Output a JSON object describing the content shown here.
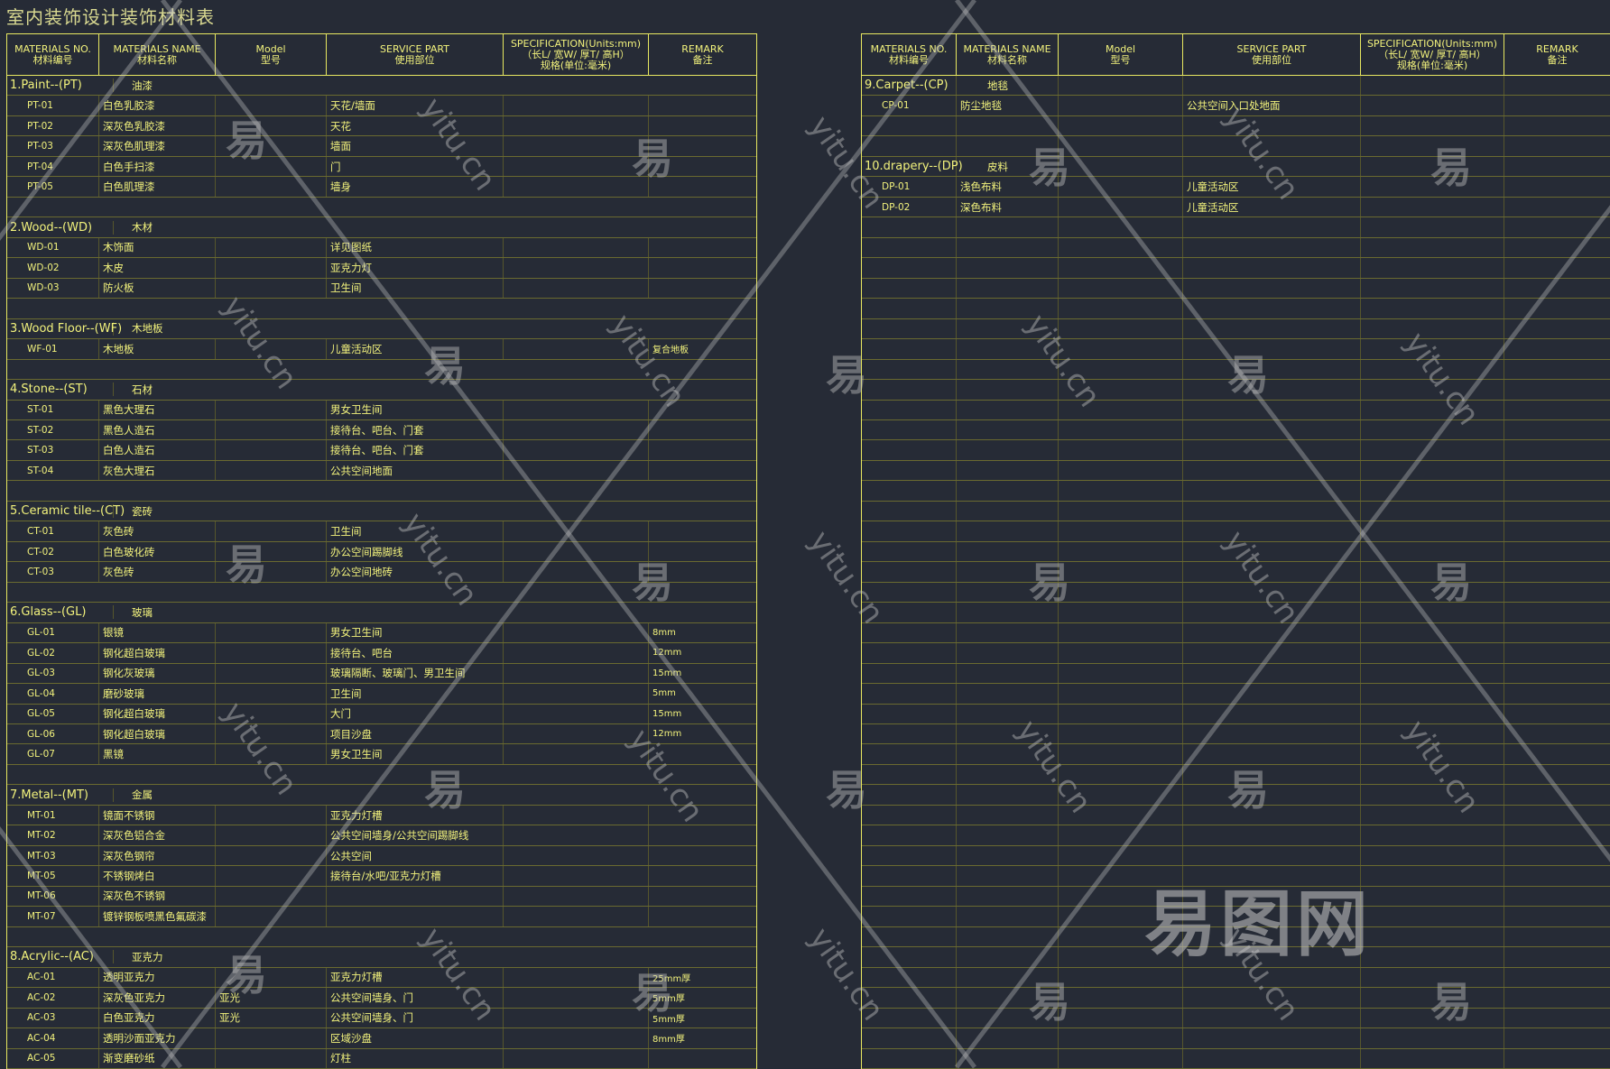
{
  "title": "室内装饰设计装饰材料表",
  "header": [
    {
      "en": "MATERIALS NO.",
      "cn": "材料编号"
    },
    {
      "en": "MATERIALS NAME",
      "cn": "材料名称"
    },
    {
      "en": "Model",
      "cn": "型号"
    },
    {
      "en": "SERVICE PART",
      "cn": "使用部位"
    },
    {
      "en": "SPECIFICATION(Units:mm)",
      "sub": "（长L/ 宽W/ 厚T/ 高H）",
      "cn": "规格(单位:毫米)"
    },
    {
      "en": "REMARK",
      "cn": "备注"
    }
  ],
  "left_sections": [
    {
      "en": "1.Paint--(PT)",
      "cn": "油漆",
      "items": [
        [
          "PT-01",
          "白色乳胶漆",
          "",
          "天花/墙面",
          "",
          ""
        ],
        [
          "PT-02",
          "深灰色乳胶漆",
          "",
          "天花",
          "",
          ""
        ],
        [
          "PT-03",
          "深灰色肌理漆",
          "",
          "墙面",
          "",
          ""
        ],
        [
          "PT-04",
          "白色手扫漆",
          "",
          "门",
          "",
          ""
        ],
        [
          "PT-05",
          "白色肌理漆",
          "",
          "墙身",
          "",
          ""
        ]
      ]
    },
    {
      "en": "2.Wood--(WD)",
      "cn": "木材",
      "items": [
        [
          "WD-01",
          "木饰面",
          "",
          "详见图纸",
          "",
          ""
        ],
        [
          "WD-02",
          "木皮",
          "",
          "亚克力灯",
          "",
          ""
        ],
        [
          "WD-03",
          "防火板",
          "",
          "卫生间",
          "",
          ""
        ]
      ]
    },
    {
      "en": "3.Wood Floor--(WF)",
      "cn": "木地板",
      "items": [
        [
          "WF-01",
          "木地板",
          "",
          "儿童活动区",
          "",
          "复合地板"
        ]
      ]
    },
    {
      "en": "4.Stone--(ST)",
      "cn": "石材",
      "items": [
        [
          "ST-01",
          "黑色大理石",
          "",
          "男女卫生间",
          "",
          ""
        ],
        [
          "ST-02",
          "黑色人造石",
          "",
          "接待台、吧台、门套",
          "",
          ""
        ],
        [
          "ST-03",
          "白色人造石",
          "",
          "接待台、吧台、门套",
          "",
          ""
        ],
        [
          "ST-04",
          "灰色大理石",
          "",
          "公共空间地面",
          "",
          ""
        ]
      ]
    },
    {
      "en": "5.Ceramic tile--(CT)",
      "cn": "瓷砖",
      "items": [
        [
          "CT-01",
          "灰色砖",
          "",
          "卫生间",
          "",
          ""
        ],
        [
          "CT-02",
          "白色玻化砖",
          "",
          "办公空间踢脚线",
          "",
          ""
        ],
        [
          "CT-03",
          "灰色砖",
          "",
          "办公空间地砖",
          "",
          ""
        ]
      ]
    },
    {
      "en": "6.Glass--(GL)",
      "cn": "玻璃",
      "items": [
        [
          "GL-01",
          "银镜",
          "",
          "男女卫生间",
          "",
          "8mm"
        ],
        [
          "GL-02",
          "钢化超白玻璃",
          "",
          "接待台、吧台",
          "",
          "12mm"
        ],
        [
          "GL-03",
          "钢化灰玻璃",
          "",
          "玻璃隔断、玻璃门、男卫生间",
          "",
          "15mm"
        ],
        [
          "GL-04",
          "磨砂玻璃",
          "",
          "卫生间",
          "",
          "5mm"
        ],
        [
          "GL-05",
          "钢化超白玻璃",
          "",
          "大门",
          "",
          "15mm"
        ],
        [
          "GL-06",
          "钢化超白玻璃",
          "",
          "项目沙盘",
          "",
          "12mm"
        ],
        [
          "GL-07",
          "黑镜",
          "",
          "男女卫生间",
          "",
          ""
        ]
      ]
    },
    {
      "en": "7.Metal--(MT)",
      "cn": "金属",
      "items": [
        [
          "MT-01",
          "镜面不锈钢",
          "",
          "亚克力灯槽",
          "",
          ""
        ],
        [
          "MT-02",
          "深灰色铝合金",
          "",
          "公共空间墙身/公共空间踢脚线",
          "",
          ""
        ],
        [
          "MT-03",
          "深灰色钢帘",
          "",
          "公共空间",
          "",
          ""
        ],
        [
          "MT-05",
          "不锈钢烤白",
          "",
          "接待台/水吧/亚克力灯槽",
          "",
          ""
        ],
        [
          "MT-06",
          "深灰色不锈钢",
          "",
          "",
          "",
          ""
        ],
        [
          "MT-07",
          "镀锌钢板喷黑色氟碳漆",
          "",
          "",
          "",
          ""
        ]
      ]
    },
    {
      "en": "8.Acrylic--(AC)",
      "cn": "亚克力",
      "items": [
        [
          "AC-01",
          "透明亚克力",
          "",
          "亚克力灯槽",
          "",
          "25mm厚"
        ],
        [
          "AC-02",
          "深灰色亚克力",
          "亚光",
          "公共空间墙身、门",
          "",
          "5mm厚"
        ],
        [
          "AC-03",
          "白色亚克力",
          "亚光",
          "公共空间墙身、门",
          "",
          "5mm厚"
        ],
        [
          "AC-04",
          "透明沙面亚克力",
          "",
          "区域沙盘",
          "",
          "8mm厚"
        ],
        [
          "AC-05",
          "渐变磨砂纸",
          "",
          "灯柱",
          "",
          ""
        ]
      ]
    }
  ],
  "right_sections": [
    {
      "en": "9.Carpet--(CP)",
      "cn": "地毯",
      "items": [
        [
          "CP-01",
          "防尘地毯",
          "",
          "公共空间入口处地面",
          "",
          ""
        ]
      ]
    },
    {
      "en": "10.drapery--(DP)",
      "cn": "皮料",
      "items": [
        [
          "DP-01",
          "浅色布料",
          "",
          "儿童活动区",
          "",
          ""
        ],
        [
          "DP-02",
          "深色布料",
          "",
          "儿童活动区",
          "",
          ""
        ]
      ]
    }
  ],
  "watermark": {
    "logo": "易图网",
    "mark": "易",
    "site": "yitu.cn"
  },
  "colors": {
    "background": "#262b36",
    "text": "#f2f27c",
    "border": "#e8e860",
    "grid": "#6a6a30"
  }
}
